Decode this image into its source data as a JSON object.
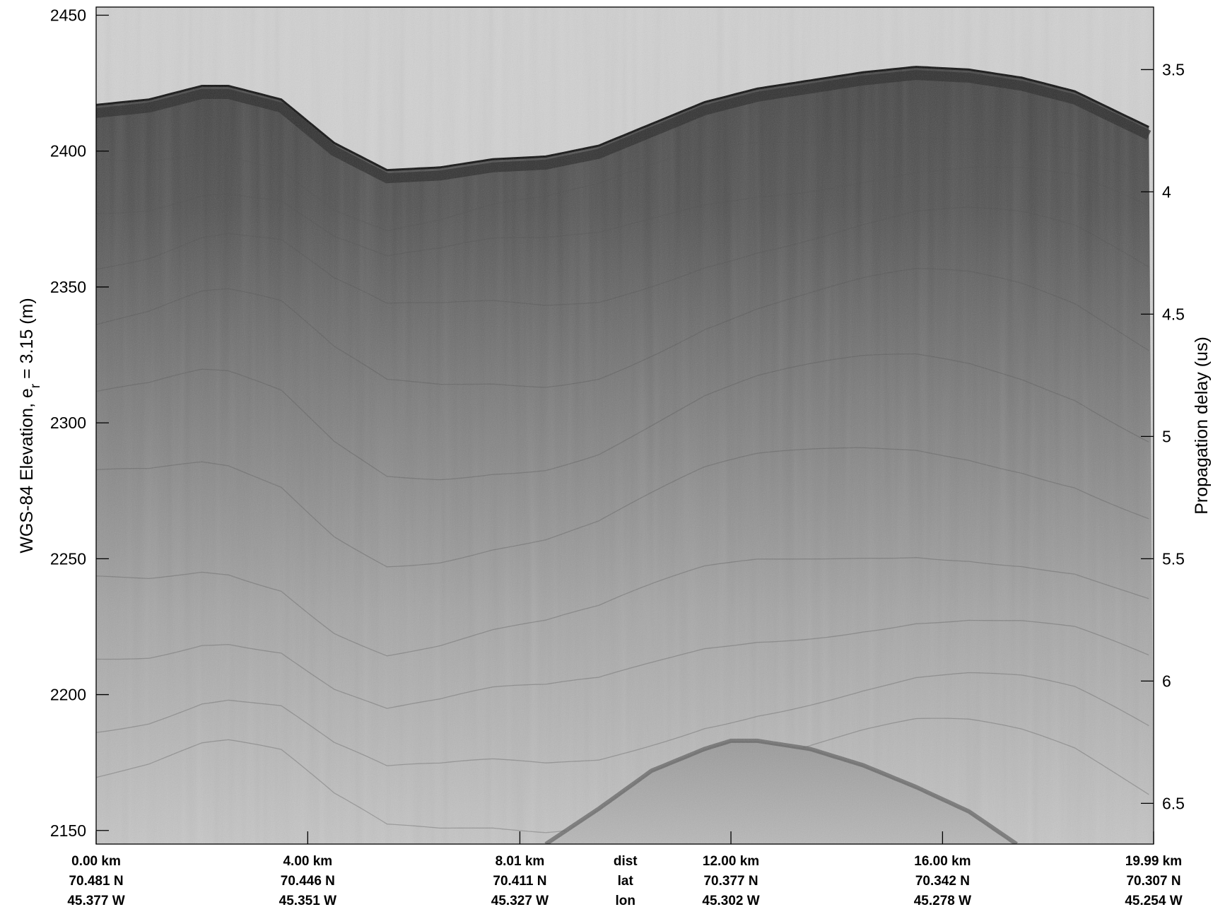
{
  "chart_data": {
    "type": "heatmap",
    "title": "",
    "colormap": "grayscale",
    "left_axis": {
      "label_main": "WGS-84 Elevation, e",
      "label_sub": "r",
      "label_tail": " = 3.15 (m)",
      "ylim": [
        2145,
        2453
      ],
      "ticks": [
        2450,
        2400,
        2350,
        2300,
        2250,
        2200,
        2150
      ],
      "tick_labels": [
        "2450",
        "2400",
        "2350",
        "2300",
        "2250",
        "2200",
        "2150"
      ]
    },
    "right_axis": {
      "label": "Propagation delay (us)",
      "ticks": [
        3.5,
        4,
        4.5,
        5,
        5.5,
        6,
        6.5
      ],
      "tick_labels": [
        "3.5",
        "4",
        "4.5",
        "5",
        "5.5",
        "6",
        "6.5"
      ],
      "elevation_at_tick": [
        2430,
        2385,
        2340,
        2295,
        2250,
        2205,
        2160
      ]
    },
    "x_axis": {
      "xlim": [
        0,
        19.99
      ],
      "ticks": [
        0.0,
        4.0,
        8.01,
        12.0,
        16.0,
        19.99
      ],
      "dist_labels": [
        "0.00 km",
        "4.00 km",
        "8.01 km",
        "12.00 km",
        "16.00 km",
        "19.99 km"
      ],
      "lat_labels": [
        "70.481 N",
        "70.446 N",
        "70.411 N",
        "70.377 N",
        "70.342 N",
        "70.307 N"
      ],
      "lon_labels": [
        "45.377 W",
        "45.351 W",
        "45.327 W",
        "45.302 W",
        "45.278 W",
        "45.254 W"
      ],
      "row_names": [
        "dist",
        "lat",
        "lon"
      ]
    },
    "surface_profile": {
      "distance_km": [
        0,
        1.0,
        2.0,
        2.5,
        3.5,
        4.5,
        5.5,
        6.5,
        7.5,
        8.5,
        9.5,
        10.5,
        11.5,
        12.5,
        13.5,
        14.5,
        15.5,
        16.5,
        17.5,
        18.5,
        19.99
      ],
      "elevation_m": [
        2417,
        2419,
        2424,
        2424,
        2419,
        2403,
        2393,
        2394,
        2397,
        2398,
        2402,
        2410,
        2418,
        2423,
        2426,
        2429,
        2431,
        2430,
        2427,
        2422,
        2408
      ]
    },
    "bedrock_profile": {
      "distance_km": [
        8.5,
        9.5,
        10.5,
        11.5,
        12.0,
        12.5,
        13.5,
        14.5,
        15.5,
        16.5,
        17.4
      ],
      "elevation_m": [
        2145,
        2158,
        2172,
        2180,
        2183,
        2183,
        2180,
        2174,
        2166,
        2157,
        2145
      ]
    },
    "internal_layers_depth_below_surface_m": [
      20,
      35,
      55,
      80,
      110,
      140,
      175,
      200,
      225,
      245
    ]
  }
}
